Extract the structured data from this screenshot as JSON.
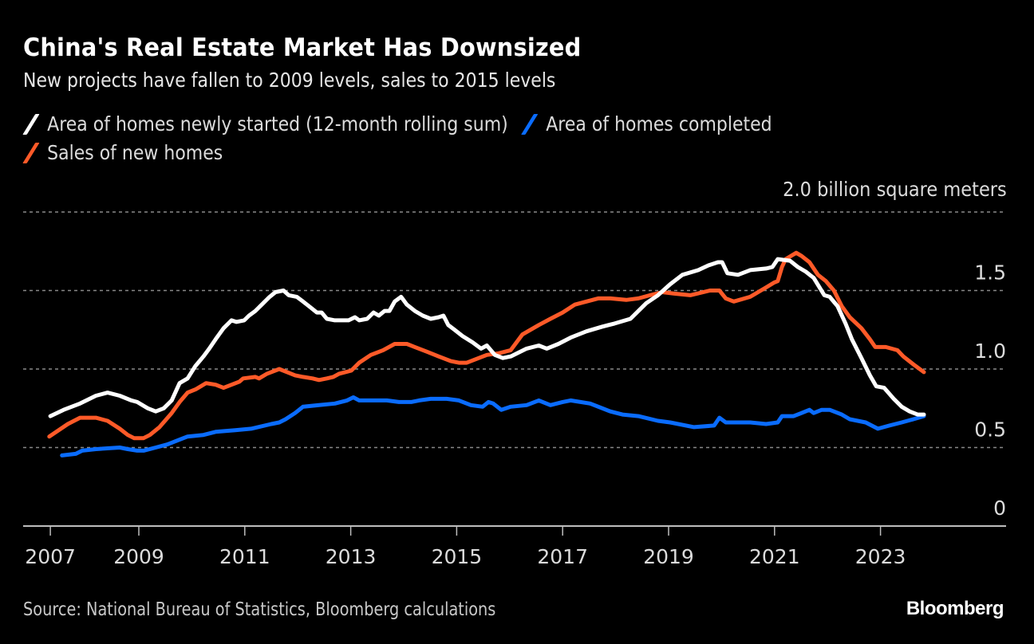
{
  "header": {
    "title": "China's Real Estate Market Has Downsized",
    "subtitle": "New projects have fallen to 2009 levels, sales to 2015 levels"
  },
  "legend": [
    {
      "label": "Area of homes newly started (12-month rolling sum)",
      "color": "#ffffff"
    },
    {
      "label": "Area of homes completed",
      "color": "#0a6cff"
    },
    {
      "label": "Sales of new homes",
      "color": "#ff5a28"
    }
  ],
  "footer": {
    "source": "Source: National Bureau of Statistics, Bloomberg calculations",
    "brand": "Bloomberg"
  },
  "chart_data": {
    "type": "line",
    "title": "China's Real Estate Market Has Downsized",
    "subtitle": "New projects have fallen to 2009 levels, sales to 2015 levels",
    "xlabel": "",
    "ylabel": "billion square meters",
    "unit_label": "2.0 billion square meters",
    "ylim": [
      0,
      2.0
    ],
    "xlim": [
      2007.0,
      2024.5
    ],
    "grid": true,
    "legend_position": "top-left",
    "y_axis_side": "right",
    "y_ticks": [
      {
        "value": 0,
        "label": "0"
      },
      {
        "value": 0.5,
        "label": "0.5"
      },
      {
        "value": 1.0,
        "label": "1.0"
      },
      {
        "value": 1.5,
        "label": "1.5"
      },
      {
        "value": 2.0,
        "label": "2.0 billion square meters"
      }
    ],
    "x_ticks": [
      {
        "value": 2007.33,
        "label": "2007"
      },
      {
        "value": 2009,
        "label": "2009"
      },
      {
        "value": 2011,
        "label": "2011"
      },
      {
        "value": 2013,
        "label": "2013"
      },
      {
        "value": 2015,
        "label": "2015"
      },
      {
        "value": 2017,
        "label": "2017"
      },
      {
        "value": 2019,
        "label": "2019"
      },
      {
        "value": 2021,
        "label": "2021"
      },
      {
        "value": 2023,
        "label": "2023"
      }
    ],
    "series": [
      {
        "name": "Area of homes newly started (12-month rolling sum)",
        "color": "#ffffff",
        "points": [
          [
            2007.33,
            0.7
          ],
          [
            2007.58,
            0.74
          ],
          [
            2007.89,
            0.78
          ],
          [
            2008.19,
            0.83
          ],
          [
            2008.41,
            0.85
          ],
          [
            2008.64,
            0.83
          ],
          [
            2008.86,
            0.8
          ],
          [
            2008.97,
            0.79
          ],
          [
            2009.17,
            0.75
          ],
          [
            2009.32,
            0.73
          ],
          [
            2009.47,
            0.75
          ],
          [
            2009.62,
            0.8
          ],
          [
            2009.77,
            0.91
          ],
          [
            2009.92,
            0.94
          ],
          [
            2010.07,
            1.02
          ],
          [
            2010.22,
            1.08
          ],
          [
            2010.33,
            1.13
          ],
          [
            2010.45,
            1.19
          ],
          [
            2010.6,
            1.26
          ],
          [
            2010.75,
            1.31
          ],
          [
            2010.84,
            1.3
          ],
          [
            2010.99,
            1.31
          ],
          [
            2011.08,
            1.34
          ],
          [
            2011.2,
            1.37
          ],
          [
            2011.35,
            1.42
          ],
          [
            2011.47,
            1.46
          ],
          [
            2011.58,
            1.49
          ],
          [
            2011.73,
            1.5
          ],
          [
            2011.83,
            1.47
          ],
          [
            2011.98,
            1.46
          ],
          [
            2012.1,
            1.43
          ],
          [
            2012.25,
            1.39
          ],
          [
            2012.36,
            1.36
          ],
          [
            2012.45,
            1.36
          ],
          [
            2012.55,
            1.32
          ],
          [
            2012.7,
            1.31
          ],
          [
            2012.86,
            1.31
          ],
          [
            2012.96,
            1.31
          ],
          [
            2013.08,
            1.33
          ],
          [
            2013.16,
            1.31
          ],
          [
            2013.31,
            1.32
          ],
          [
            2013.43,
            1.36
          ],
          [
            2013.53,
            1.34
          ],
          [
            2013.64,
            1.37
          ],
          [
            2013.73,
            1.37
          ],
          [
            2013.83,
            1.43
          ],
          [
            2013.95,
            1.46
          ],
          [
            2014.06,
            1.41
          ],
          [
            2014.21,
            1.37
          ],
          [
            2014.36,
            1.34
          ],
          [
            2014.51,
            1.32
          ],
          [
            2014.66,
            1.33
          ],
          [
            2014.75,
            1.34
          ],
          [
            2014.84,
            1.28
          ],
          [
            2014.96,
            1.25
          ],
          [
            2015.11,
            1.21
          ],
          [
            2015.3,
            1.17
          ],
          [
            2015.46,
            1.13
          ],
          [
            2015.57,
            1.15
          ],
          [
            2015.72,
            1.09
          ],
          [
            2015.87,
            1.07
          ],
          [
            2016.02,
            1.08
          ],
          [
            2016.32,
            1.13
          ],
          [
            2016.55,
            1.15
          ],
          [
            2016.7,
            1.13
          ],
          [
            2016.92,
            1.16
          ],
          [
            2017.15,
            1.2
          ],
          [
            2017.45,
            1.24
          ],
          [
            2017.75,
            1.27
          ],
          [
            2017.98,
            1.29
          ],
          [
            2018.28,
            1.32
          ],
          [
            2018.58,
            1.42
          ],
          [
            2018.8,
            1.47
          ],
          [
            2019.03,
            1.54
          ],
          [
            2019.26,
            1.6
          ],
          [
            2019.56,
            1.63
          ],
          [
            2019.75,
            1.66
          ],
          [
            2019.93,
            1.68
          ],
          [
            2020.01,
            1.68
          ],
          [
            2020.11,
            1.61
          ],
          [
            2020.31,
            1.6
          ],
          [
            2020.54,
            1.63
          ],
          [
            2020.84,
            1.64
          ],
          [
            2020.96,
            1.65
          ],
          [
            2021.06,
            1.7
          ],
          [
            2021.29,
            1.69
          ],
          [
            2021.44,
            1.65
          ],
          [
            2021.59,
            1.62
          ],
          [
            2021.74,
            1.58
          ],
          [
            2021.94,
            1.47
          ],
          [
            2022.04,
            1.46
          ],
          [
            2022.19,
            1.4
          ],
          [
            2022.34,
            1.29
          ],
          [
            2022.46,
            1.19
          ],
          [
            2022.64,
            1.07
          ],
          [
            2022.8,
            0.96
          ],
          [
            2022.92,
            0.89
          ],
          [
            2023.07,
            0.88
          ],
          [
            2023.25,
            0.81
          ],
          [
            2023.4,
            0.76
          ],
          [
            2023.55,
            0.73
          ],
          [
            2023.7,
            0.71
          ],
          [
            2023.82,
            0.71
          ]
        ]
      },
      {
        "name": "Area of homes completed",
        "color": "#0a6cff",
        "points": [
          [
            2007.55,
            0.45
          ],
          [
            2007.81,
            0.46
          ],
          [
            2007.93,
            0.48
          ],
          [
            2008.19,
            0.49
          ],
          [
            2008.64,
            0.5
          ],
          [
            2008.79,
            0.49
          ],
          [
            2008.97,
            0.48
          ],
          [
            2009.09,
            0.48
          ],
          [
            2009.32,
            0.5
          ],
          [
            2009.54,
            0.52
          ],
          [
            2009.77,
            0.55
          ],
          [
            2009.92,
            0.57
          ],
          [
            2010.22,
            0.58
          ],
          [
            2010.45,
            0.6
          ],
          [
            2010.82,
            0.61
          ],
          [
            2011.12,
            0.62
          ],
          [
            2011.5,
            0.65
          ],
          [
            2011.65,
            0.66
          ],
          [
            2011.77,
            0.68
          ],
          [
            2011.95,
            0.72
          ],
          [
            2012.1,
            0.76
          ],
          [
            2012.4,
            0.77
          ],
          [
            2012.7,
            0.78
          ],
          [
            2012.93,
            0.8
          ],
          [
            2013.05,
            0.82
          ],
          [
            2013.16,
            0.8
          ],
          [
            2013.46,
            0.8
          ],
          [
            2013.68,
            0.8
          ],
          [
            2013.91,
            0.79
          ],
          [
            2014.14,
            0.79
          ],
          [
            2014.29,
            0.8
          ],
          [
            2014.51,
            0.81
          ],
          [
            2014.81,
            0.81
          ],
          [
            2015.04,
            0.8
          ],
          [
            2015.27,
            0.77
          ],
          [
            2015.49,
            0.76
          ],
          [
            2015.6,
            0.79
          ],
          [
            2015.69,
            0.78
          ],
          [
            2015.84,
            0.74
          ],
          [
            2016.02,
            0.76
          ],
          [
            2016.32,
            0.77
          ],
          [
            2016.55,
            0.8
          ],
          [
            2016.77,
            0.77
          ],
          [
            2017.0,
            0.79
          ],
          [
            2017.15,
            0.8
          ],
          [
            2017.52,
            0.78
          ],
          [
            2017.9,
            0.73
          ],
          [
            2018.13,
            0.71
          ],
          [
            2018.43,
            0.7
          ],
          [
            2018.8,
            0.67
          ],
          [
            2019.03,
            0.66
          ],
          [
            2019.48,
            0.63
          ],
          [
            2019.86,
            0.64
          ],
          [
            2019.96,
            0.69
          ],
          [
            2020.08,
            0.66
          ],
          [
            2020.54,
            0.66
          ],
          [
            2020.84,
            0.65
          ],
          [
            2021.06,
            0.66
          ],
          [
            2021.14,
            0.7
          ],
          [
            2021.36,
            0.7
          ],
          [
            2021.51,
            0.72
          ],
          [
            2021.66,
            0.74
          ],
          [
            2021.74,
            0.72
          ],
          [
            2021.89,
            0.74
          ],
          [
            2022.04,
            0.74
          ],
          [
            2022.27,
            0.71
          ],
          [
            2022.42,
            0.68
          ],
          [
            2022.72,
            0.66
          ],
          [
            2022.95,
            0.62
          ],
          [
            2023.17,
            0.64
          ],
          [
            2023.4,
            0.66
          ],
          [
            2023.62,
            0.68
          ],
          [
            2023.82,
            0.7
          ]
        ]
      },
      {
        "name": "Sales of new homes",
        "color": "#ff5a28",
        "points": [
          [
            2007.31,
            0.57
          ],
          [
            2007.66,
            0.65
          ],
          [
            2007.89,
            0.69
          ],
          [
            2008.19,
            0.69
          ],
          [
            2008.41,
            0.67
          ],
          [
            2008.64,
            0.62
          ],
          [
            2008.79,
            0.58
          ],
          [
            2008.91,
            0.56
          ],
          [
            2009.09,
            0.56
          ],
          [
            2009.21,
            0.58
          ],
          [
            2009.39,
            0.63
          ],
          [
            2009.62,
            0.72
          ],
          [
            2009.77,
            0.79
          ],
          [
            2009.92,
            0.85
          ],
          [
            2010.07,
            0.87
          ],
          [
            2010.27,
            0.91
          ],
          [
            2010.45,
            0.9
          ],
          [
            2010.6,
            0.88
          ],
          [
            2010.75,
            0.9
          ],
          [
            2010.9,
            0.92
          ],
          [
            2010.97,
            0.94
          ],
          [
            2011.2,
            0.95
          ],
          [
            2011.27,
            0.94
          ],
          [
            2011.42,
            0.97
          ],
          [
            2011.65,
            1.0
          ],
          [
            2011.8,
            0.98
          ],
          [
            2011.95,
            0.96
          ],
          [
            2012.1,
            0.95
          ],
          [
            2012.28,
            0.94
          ],
          [
            2012.4,
            0.93
          ],
          [
            2012.55,
            0.94
          ],
          [
            2012.67,
            0.95
          ],
          [
            2012.78,
            0.97
          ],
          [
            2013.01,
            0.99
          ],
          [
            2013.16,
            1.04
          ],
          [
            2013.38,
            1.09
          ],
          [
            2013.61,
            1.12
          ],
          [
            2013.83,
            1.16
          ],
          [
            2014.06,
            1.16
          ],
          [
            2014.21,
            1.14
          ],
          [
            2014.44,
            1.11
          ],
          [
            2014.66,
            1.08
          ],
          [
            2014.89,
            1.05
          ],
          [
            2015.04,
            1.04
          ],
          [
            2015.19,
            1.04
          ],
          [
            2015.34,
            1.06
          ],
          [
            2015.57,
            1.09
          ],
          [
            2015.79,
            1.1
          ],
          [
            2016.02,
            1.12
          ],
          [
            2016.24,
            1.22
          ],
          [
            2016.55,
            1.28
          ],
          [
            2016.77,
            1.32
          ],
          [
            2017.0,
            1.36
          ],
          [
            2017.23,
            1.41
          ],
          [
            2017.45,
            1.43
          ],
          [
            2017.67,
            1.45
          ],
          [
            2017.9,
            1.45
          ],
          [
            2018.2,
            1.44
          ],
          [
            2018.43,
            1.45
          ],
          [
            2018.65,
            1.47
          ],
          [
            2018.88,
            1.49
          ],
          [
            2019.11,
            1.48
          ],
          [
            2019.41,
            1.47
          ],
          [
            2019.78,
            1.5
          ],
          [
            2019.96,
            1.5
          ],
          [
            2020.08,
            1.45
          ],
          [
            2020.23,
            1.43
          ],
          [
            2020.54,
            1.46
          ],
          [
            2020.84,
            1.52
          ],
          [
            2020.99,
            1.55
          ],
          [
            2021.06,
            1.56
          ],
          [
            2021.14,
            1.65
          ],
          [
            2021.21,
            1.7
          ],
          [
            2021.41,
            1.74
          ],
          [
            2021.51,
            1.72
          ],
          [
            2021.66,
            1.68
          ],
          [
            2021.82,
            1.6
          ],
          [
            2021.97,
            1.56
          ],
          [
            2022.12,
            1.5
          ],
          [
            2022.27,
            1.4
          ],
          [
            2022.42,
            1.33
          ],
          [
            2022.64,
            1.26
          ],
          [
            2022.8,
            1.19
          ],
          [
            2022.9,
            1.14
          ],
          [
            2023.1,
            1.14
          ],
          [
            2023.32,
            1.12
          ],
          [
            2023.43,
            1.08
          ],
          [
            2023.62,
            1.03
          ],
          [
            2023.82,
            0.98
          ]
        ]
      }
    ]
  }
}
